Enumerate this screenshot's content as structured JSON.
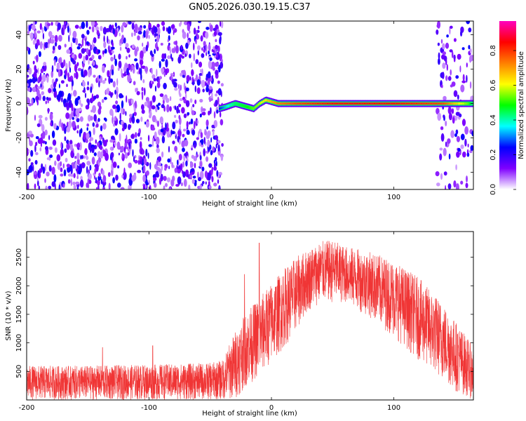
{
  "title": "GN05.2026.030.19.15.C37",
  "chart_data": [
    {
      "type": "heatmap",
      "xlabel": "Height of straight line (km)",
      "ylabel": "Frequency (Hz)",
      "xlim": [
        -200,
        165
      ],
      "ylim": [
        -50,
        48
      ],
      "xticks": [
        -200,
        -100,
        0,
        100
      ],
      "yticks": [
        -40,
        -20,
        0,
        20,
        40
      ],
      "colorbar": {
        "label": "Normalized spectral amplitude",
        "range": [
          0,
          0.97
        ],
        "ticks": [
          0.0,
          0.2,
          0.4,
          0.6,
          0.8
        ],
        "tick_labels": [
          "0.0",
          "0.2",
          "0.4",
          "0.6",
          "0.8"
        ],
        "colormap": [
          "#ffffff",
          "#7f00ff",
          "#0000ff",
          "#00ffff",
          "#00ff00",
          "#ffff00",
          "#ff7f00",
          "#ff0000",
          "#ff00bf"
        ]
      },
      "noise_region_x": [
        -200,
        -40
      ],
      "noise_region_x_right": [
        135,
        165
      ],
      "ridge": {
        "description_points_x": [
          -43,
          -38,
          -30,
          -20,
          -15,
          -10,
          -5,
          0,
          5,
          20,
          50,
          100,
          140,
          160,
          165
        ],
        "frequency_hz": [
          -3,
          -2,
          0,
          -2,
          -3,
          0,
          2,
          1,
          0,
          0,
          0,
          0,
          0,
          0,
          0
        ],
        "amplitude": [
          0.25,
          0.35,
          0.45,
          0.5,
          0.55,
          0.6,
          0.65,
          0.7,
          0.75,
          0.8,
          0.85,
          0.85,
          0.8,
          0.55,
          0.4
        ]
      }
    },
    {
      "type": "line",
      "xlabel": "Height of straight line (km)",
      "ylabel": "SNR (10 * v/v)",
      "xlim": [
        -200,
        165
      ],
      "ylim": [
        0,
        2950
      ],
      "xticks": [
        -200,
        -100,
        0,
        100
      ],
      "yticks": [
        500,
        1000,
        1500,
        2000,
        2500
      ],
      "color": "#f03535",
      "envelope": {
        "x": [
          -200,
          -150,
          -100,
          -50,
          -40,
          -30,
          -20,
          -10,
          0,
          10,
          20,
          30,
          40,
          50,
          60,
          80,
          100,
          120,
          140,
          150,
          160,
          165
        ],
        "low": [
          0,
          0,
          0,
          0,
          0,
          0,
          250,
          400,
          650,
          900,
          1200,
          1550,
          1700,
          1700,
          1700,
          1450,
          1100,
          700,
          350,
          150,
          50,
          0
        ],
        "high": [
          600,
          600,
          620,
          650,
          700,
          1200,
          1550,
          1800,
          2050,
          2300,
          2500,
          2650,
          2780,
          2800,
          2700,
          2600,
          2450,
          2150,
          1700,
          1400,
          1100,
          900
        ]
      },
      "spikes": [
        {
          "x": -97,
          "y": 950
        },
        {
          "x": -138,
          "y": 920
        },
        {
          "x": -10,
          "y": 2750
        },
        {
          "x": -22,
          "y": 2200
        }
      ]
    }
  ]
}
